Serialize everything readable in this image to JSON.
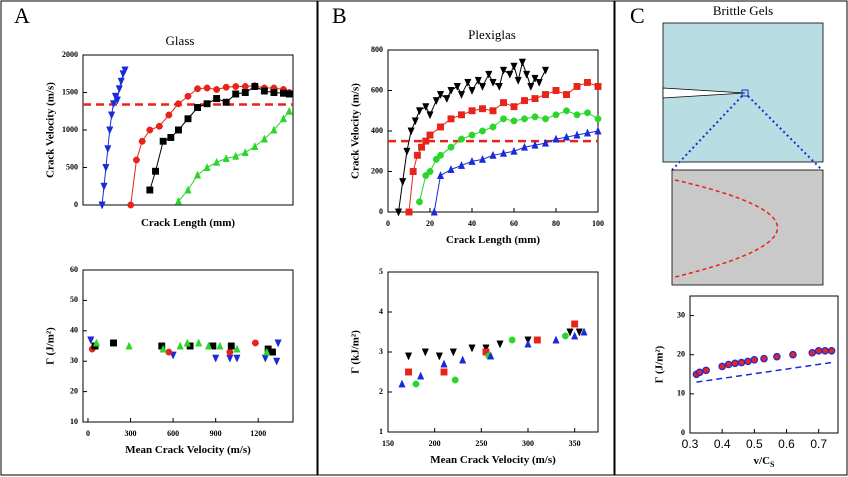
{
  "chart_data": [
    {
      "type": "scatter",
      "panel": "A",
      "title": "Glass",
      "x_label": "Crack Length (mm)",
      "y_label": "Crack Velocity (m/s)",
      "xlim": [
        0,
        110
      ],
      "ylim": [
        0,
        2000
      ],
      "yticks": [
        0,
        500,
        1000,
        1500,
        2000
      ],
      "ref_line": 1340,
      "ref_color": "#e8231a",
      "series": [
        {
          "marker": "triangle-down",
          "color": "#1a2bd9",
          "connected": true,
          "x": [
            10,
            11,
            12,
            13,
            14,
            15,
            16,
            17,
            18,
            19,
            20,
            21,
            22
          ],
          "values": [
            0,
            250,
            500,
            750,
            1000,
            1200,
            1350,
            1450,
            1400,
            1550,
            1650,
            1750,
            1800
          ]
        },
        {
          "marker": "circle",
          "color": "#e8231a",
          "connected": true,
          "x": [
            25,
            28,
            31,
            35,
            40,
            45,
            50,
            55,
            60,
            65,
            70,
            75,
            80,
            85,
            90,
            95,
            100,
            105,
            108
          ],
          "values": [
            0,
            600,
            850,
            1000,
            1050,
            1200,
            1350,
            1450,
            1550,
            1560,
            1540,
            1570,
            1580,
            1580,
            1590,
            1560,
            1560,
            1540,
            1500
          ]
        },
        {
          "marker": "square",
          "color": "#000000",
          "connected": true,
          "x": [
            35,
            38,
            42,
            46,
            50,
            55,
            60,
            65,
            70,
            75,
            80,
            85,
            90,
            95,
            100,
            105,
            108
          ],
          "values": [
            200,
            450,
            850,
            900,
            1000,
            1150,
            1300,
            1350,
            1420,
            1370,
            1480,
            1500,
            1580,
            1520,
            1500,
            1490,
            1480
          ]
        },
        {
          "marker": "triangle-up",
          "color": "#2bd62b",
          "connected": true,
          "x": [
            50,
            55,
            60,
            65,
            70,
            75,
            80,
            85,
            90,
            95,
            100,
            105,
            108
          ],
          "values": [
            50,
            200,
            400,
            500,
            570,
            620,
            650,
            700,
            780,
            880,
            1000,
            1150,
            1250
          ]
        }
      ]
    },
    {
      "type": "scatter",
      "x_label": "Mean Crack Velocity (m/s)",
      "y_label": "Γ (J/m²)",
      "xlim": [
        -35,
        1445
      ],
      "xticks": [
        0,
        300,
        600,
        900,
        1200
      ],
      "ylim": [
        10,
        60
      ],
      "yticks": [
        10,
        20,
        30,
        40,
        50,
        60
      ],
      "series": [
        {
          "marker": "triangle-down",
          "color": "#1a2bd9",
          "x": [
            20,
            600,
            900,
            1000,
            1050,
            1250,
            1330,
            1340
          ],
          "values": [
            37,
            32,
            31,
            31,
            31,
            31,
            30,
            36
          ]
        },
        {
          "marker": "circle",
          "color": "#e8231a",
          "x": [
            30,
            570,
            1000,
            1180,
            1300
          ],
          "values": [
            34,
            33,
            33,
            36,
            33
          ]
        },
        {
          "marker": "square",
          "color": "#000000",
          "x": [
            50,
            180,
            520,
            720,
            880,
            1010,
            1270,
            1300
          ],
          "values": [
            35,
            36,
            35,
            35,
            35,
            35,
            34,
            33
          ]
        },
        {
          "marker": "triangle-up",
          "color": "#2bd62b",
          "x": [
            60,
            290,
            530,
            650,
            700,
            780,
            850,
            930,
            1050,
            1260
          ],
          "values": [
            36,
            35,
            34,
            35,
            36,
            36,
            35,
            35,
            34,
            33
          ]
        }
      ]
    },
    {
      "type": "scatter",
      "panel": "B",
      "title": "Plexiglas",
      "x_label": "Crack Length (mm)",
      "y_label": "Crack Velocity (m/s)",
      "xlim": [
        0,
        100
      ],
      "xticks": [
        0,
        20,
        40,
        60,
        80,
        100
      ],
      "ylim": [
        0,
        800
      ],
      "yticks": [
        0,
        200,
        400,
        600,
        800
      ],
      "ref_line": 350,
      "ref_color": "#e8231a",
      "series": [
        {
          "marker": "triangle-down",
          "color": "#000000",
          "connected": true,
          "x": [
            5,
            7,
            9,
            11,
            13,
            15,
            18,
            20,
            23,
            25,
            28,
            30,
            33,
            35,
            38,
            40,
            43,
            45,
            48,
            50,
            53,
            55,
            58,
            60,
            62,
            64,
            66,
            68,
            70,
            72,
            75
          ],
          "values": [
            0,
            150,
            300,
            400,
            450,
            500,
            520,
            480,
            550,
            580,
            560,
            600,
            620,
            580,
            640,
            600,
            650,
            620,
            680,
            640,
            620,
            700,
            680,
            720,
            650,
            740,
            680,
            620,
            660,
            640,
            700
          ]
        },
        {
          "marker": "square",
          "color": "#e8231a",
          "connected": true,
          "x": [
            10,
            12,
            14,
            16,
            18,
            20,
            25,
            30,
            35,
            40,
            45,
            50,
            55,
            60,
            65,
            70,
            75,
            80,
            85,
            90,
            95,
            100
          ],
          "values": [
            0,
            200,
            280,
            320,
            350,
            380,
            420,
            460,
            480,
            500,
            510,
            500,
            540,
            520,
            550,
            560,
            580,
            600,
            580,
            620,
            640,
            620
          ]
        },
        {
          "marker": "circle",
          "color": "#2bd62b",
          "connected": true,
          "x": [
            15,
            18,
            20,
            23,
            25,
            30,
            35,
            40,
            45,
            50,
            55,
            60,
            65,
            70,
            75,
            80,
            85,
            90,
            95,
            100
          ],
          "values": [
            50,
            180,
            200,
            260,
            280,
            320,
            360,
            380,
            400,
            420,
            460,
            450,
            460,
            470,
            460,
            480,
            500,
            480,
            490,
            460
          ]
        },
        {
          "marker": "triangle-up",
          "color": "#1a2bd9",
          "connected": true,
          "x": [
            22,
            25,
            30,
            35,
            40,
            45,
            50,
            55,
            60,
            65,
            70,
            75,
            80,
            85,
            90,
            95,
            100
          ],
          "values": [
            0,
            180,
            210,
            230,
            250,
            260,
            280,
            290,
            300,
            320,
            330,
            340,
            360,
            370,
            380,
            390,
            400
          ]
        }
      ]
    },
    {
      "type": "scatter",
      "x_label": "Mean Crack Velocity (m/s)",
      "y_label": "Γ (kJ/m²)",
      "xlim": [
        150,
        375
      ],
      "xticks": [
        150,
        200,
        250,
        300,
        350
      ],
      "ylim": [
        1,
        5
      ],
      "yticks": [
        1,
        2,
        3,
        4,
        5
      ],
      "series": [
        {
          "marker": "triangle-down",
          "color": "#000000",
          "x": [
            172,
            190,
            205,
            220,
            240,
            255,
            270,
            300,
            345,
            355
          ],
          "values": [
            2.9,
            3.0,
            2.9,
            3.0,
            3.1,
            3.1,
            3.2,
            3.3,
            3.5,
            3.5
          ]
        },
        {
          "marker": "square",
          "color": "#e8231a",
          "x": [
            172,
            210,
            255,
            310,
            350
          ],
          "values": [
            2.5,
            2.5,
            3.0,
            3.3,
            3.7
          ]
        },
        {
          "marker": "circle",
          "color": "#2bd62b",
          "x": [
            180,
            222,
            258,
            283,
            340
          ],
          "values": [
            2.2,
            2.3,
            2.9,
            3.3,
            3.4
          ]
        },
        {
          "marker": "triangle-up",
          "color": "#1a2bd9",
          "x": [
            165,
            185,
            210,
            230,
            260,
            300,
            330,
            350,
            360
          ],
          "values": [
            2.2,
            2.4,
            2.7,
            2.8,
            2.9,
            3.2,
            3.3,
            3.4,
            3.5
          ]
        }
      ]
    },
    {
      "type": "scatter",
      "panel": "C",
      "panel_title": "Brittle Gels",
      "x_label": "v/C",
      "x_label_subscript": "S",
      "y_label": "Γ (J/m²)",
      "xlim": [
        0.3,
        0.76
      ],
      "xticks": [
        0.3,
        0.4,
        0.5,
        0.6,
        0.7
      ],
      "ylim": [
        0,
        35
      ],
      "yticks": [
        0,
        10,
        20,
        30
      ],
      "series": [
        {
          "marker": "circle",
          "color": "#e8231a",
          "edge": "#1a2bd9",
          "x": [
            0.32,
            0.33,
            0.35,
            0.4,
            0.42,
            0.44,
            0.46,
            0.48,
            0.5,
            0.53,
            0.57,
            0.62,
            0.68,
            0.7,
            0.72,
            0.74
          ],
          "values": [
            15,
            15.5,
            16,
            17,
            17.5,
            17.8,
            18,
            18.3,
            18.7,
            19,
            19.5,
            20,
            20.5,
            21,
            21,
            21
          ]
        },
        {
          "marker": "none",
          "color": "#1a2bd9",
          "connected": true,
          "dashed": true,
          "x": [
            0.32,
            0.74
          ],
          "values": [
            13,
            18
          ]
        }
      ]
    }
  ]
}
